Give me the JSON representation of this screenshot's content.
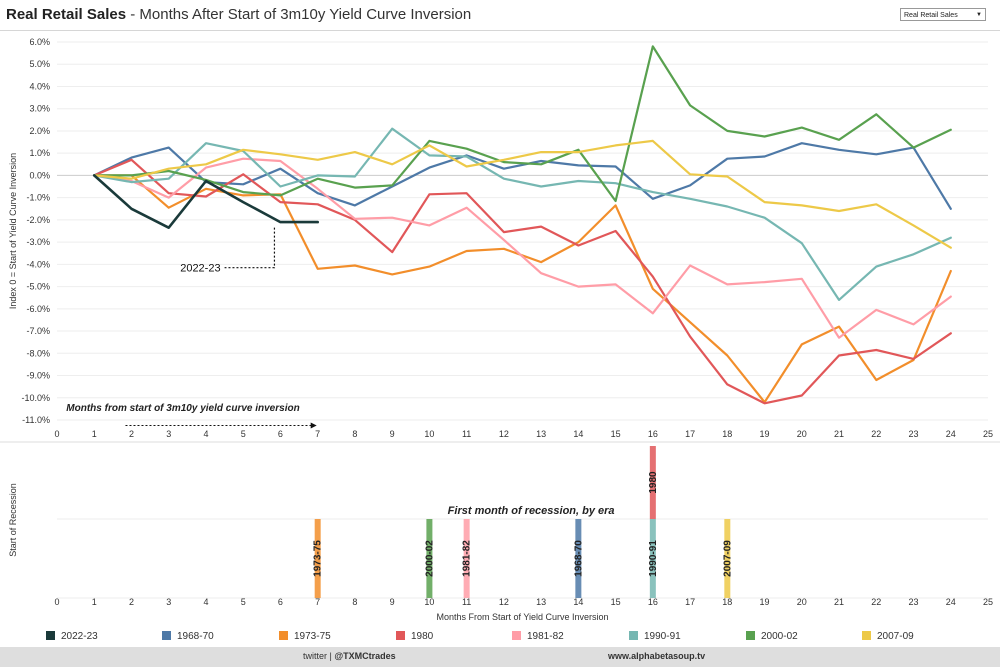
{
  "header": {
    "title_bold": "Real Retail Sales",
    "title_rest": " - Months After Start of 3m10y Yield Curve Inversion",
    "dropdown_value": "Real Retail Sales"
  },
  "colors": {
    "2022-23": "#1a3a3a",
    "1968-70": "#4e79a7",
    "1973-75": "#f28e2b",
    "1980": "#e15759",
    "1981-82": "#ff9da7",
    "1990-91": "#76b7b2",
    "2000-02": "#59a14f",
    "2007-09": "#edc948"
  },
  "chart_data": [
    {
      "type": "line",
      "ylabel": "Index 0 = Start of Yield Curve Inversion",
      "xlim": [
        0,
        25
      ],
      "ylim": [
        -11,
        6
      ],
      "y_ticks": [
        "6.0%",
        "5.0%",
        "4.0%",
        "3.0%",
        "2.0%",
        "1.0%",
        "0.0%",
        "-1.0%",
        "-2.0%",
        "-3.0%",
        "-4.0%",
        "-5.0%",
        "-6.0%",
        "-7.0%",
        "-8.0%",
        "-9.0%",
        "-10.0%",
        "-11.0%"
      ],
      "x_ticks": [
        "0",
        "1",
        "2",
        "3",
        "4",
        "5",
        "6",
        "7",
        "8",
        "9",
        "10",
        "11",
        "12",
        "13",
        "14",
        "15",
        "16",
        "17",
        "18",
        "19",
        "20",
        "21",
        "22",
        "23",
        "24",
        "25"
      ],
      "series": [
        {
          "name": "2022-23",
          "x": [
            1,
            2,
            3,
            4,
            5,
            6,
            7
          ],
          "values": [
            0,
            -1.5,
            -2.35,
            -0.25,
            -1.2,
            -2.1,
            -2.1
          ]
        },
        {
          "name": "1968-70",
          "x": [
            1,
            2,
            3,
            4,
            5,
            6,
            7,
            8,
            9,
            10,
            11,
            12,
            13,
            14,
            15,
            16,
            17,
            18,
            19,
            20,
            21,
            22,
            23,
            24
          ],
          "values": [
            0,
            0.8,
            1.25,
            -0.3,
            -0.4,
            0.3,
            -0.8,
            -1.35,
            -0.5,
            0.35,
            0.9,
            0.3,
            0.65,
            0.45,
            0.4,
            -1.05,
            -0.45,
            0.75,
            0.85,
            1.45,
            1.15,
            0.95,
            1.25,
            -1.5
          ]
        },
        {
          "name": "1973-75",
          "x": [
            1,
            2,
            3,
            4,
            5,
            6,
            7,
            8,
            9,
            10,
            11,
            12,
            13,
            14,
            15,
            16,
            17,
            18,
            19,
            20,
            21,
            22,
            23,
            24
          ],
          "values": [
            0,
            0,
            -1.45,
            -0.6,
            -0.9,
            -0.85,
            -4.2,
            -4.05,
            -4.45,
            -4.1,
            -3.4,
            -3.3,
            -3.9,
            -3.0,
            -1.35,
            -5.1,
            -6.6,
            -8.1,
            -10.2,
            -7.6,
            -6.8,
            -9.2,
            -8.3,
            -4.3
          ]
        },
        {
          "name": "1980",
          "x": [
            1,
            2,
            3,
            4,
            5,
            6,
            7,
            8,
            9,
            10,
            11,
            12,
            13,
            14,
            15,
            16,
            17,
            18,
            19,
            20,
            21,
            22,
            23,
            24
          ],
          "values": [
            0,
            0.7,
            -0.8,
            -0.95,
            0.05,
            -1.2,
            -1.3,
            -2.0,
            -3.45,
            -0.85,
            -0.8,
            -2.55,
            -2.3,
            -3.15,
            -2.5,
            -4.55,
            -7.25,
            -9.4,
            -10.25,
            -9.9,
            -8.1,
            -7.85,
            -8.25,
            -7.1
          ]
        },
        {
          "name": "1981-82",
          "x": [
            1,
            2,
            3,
            4,
            5,
            6,
            7,
            8,
            9,
            10,
            11,
            12,
            13,
            14,
            15,
            16,
            17,
            18,
            19,
            20,
            21,
            22,
            23,
            24
          ],
          "values": [
            0,
            -0.25,
            -1.0,
            0.35,
            0.75,
            0.65,
            -0.6,
            -1.95,
            -1.9,
            -2.25,
            -1.45,
            -2.9,
            -4.4,
            -5.0,
            -4.9,
            -6.2,
            -4.05,
            -4.9,
            -4.8,
            -4.65,
            -7.3,
            -6.05,
            -6.7,
            -5.45
          ]
        },
        {
          "name": "1990-91",
          "x": [
            1,
            2,
            3,
            4,
            5,
            6,
            7,
            8,
            9,
            10,
            11,
            12,
            13,
            14,
            15,
            16,
            17,
            18,
            19,
            20,
            21,
            22,
            23,
            24
          ],
          "values": [
            0,
            -0.3,
            -0.15,
            1.45,
            1.1,
            -0.5,
            0,
            -0.05,
            2.1,
            0.9,
            0.85,
            -0.15,
            -0.5,
            -0.25,
            -0.35,
            -0.75,
            -1.05,
            -1.4,
            -1.9,
            -3.05,
            -5.6,
            -4.1,
            -3.55,
            -2.8
          ]
        },
        {
          "name": "2000-02",
          "x": [
            1,
            2,
            3,
            4,
            5,
            6,
            7,
            8,
            9,
            10,
            11,
            12,
            13,
            14,
            15,
            16,
            17,
            18,
            19,
            20,
            21,
            22,
            23,
            24
          ],
          "values": [
            0,
            0,
            0.2,
            -0.2,
            -0.75,
            -0.9,
            -0.15,
            -0.55,
            -0.45,
            1.55,
            1.2,
            0.6,
            0.5,
            1.15,
            -1.15,
            5.8,
            3.15,
            2.0,
            1.75,
            2.15,
            1.6,
            2.75,
            1.25,
            2.05
          ]
        },
        {
          "name": "2007-09",
          "x": [
            1,
            2,
            3,
            4,
            5,
            6,
            7,
            8,
            9,
            10,
            11,
            12,
            13,
            14,
            15,
            16,
            17,
            18,
            19,
            20,
            21,
            22,
            23,
            24
          ],
          "values": [
            0,
            -0.15,
            0.3,
            0.5,
            1.15,
            0.95,
            0.7,
            1.05,
            0.5,
            1.35,
            0.4,
            0.7,
            1.05,
            1.05,
            1.35,
            1.55,
            0.05,
            -0.05,
            -1.2,
            -1.35,
            -1.6,
            -1.3,
            -2.25,
            -3.25
          ]
        }
      ]
    },
    {
      "type": "bar",
      "title": "First month of recession, by era",
      "xlabel": "Months From Start of Yield Curve Inversion",
      "ylabel": "Start of Recession",
      "xlim": [
        0,
        25
      ],
      "x_ticks": [
        "0",
        "1",
        "2",
        "3",
        "4",
        "5",
        "6",
        "7",
        "8",
        "9",
        "10",
        "11",
        "12",
        "13",
        "14",
        "15",
        "16",
        "17",
        "18",
        "19",
        "20",
        "21",
        "22",
        "23",
        "24",
        "25"
      ],
      "bars": [
        {
          "era": "1973-75",
          "month": 7,
          "row": 1
        },
        {
          "era": "2000-02",
          "month": 10,
          "row": 1
        },
        {
          "era": "1981-82",
          "month": 11,
          "row": 1
        },
        {
          "era": "1968-70",
          "month": 14,
          "row": 1
        },
        {
          "era": "1990-91",
          "month": 16,
          "row": 1
        },
        {
          "era": "2007-09",
          "month": 18,
          "row": 1
        },
        {
          "era": "1980",
          "month": 16,
          "row": 2
        }
      ]
    }
  ],
  "annotations": {
    "current_label": "2022-23",
    "arrow_label": "Months from start of 3m10y yield curve inversion"
  },
  "legend": [
    "2022-23",
    "1968-70",
    "1973-75",
    "1980",
    "1981-82",
    "1990-91",
    "2000-02",
    "2007-09"
  ],
  "footer": {
    "twitter_prefix": "twitter | ",
    "twitter_handle": "@TXMCtrades",
    "website": "www.alphabetasoup.tv"
  }
}
